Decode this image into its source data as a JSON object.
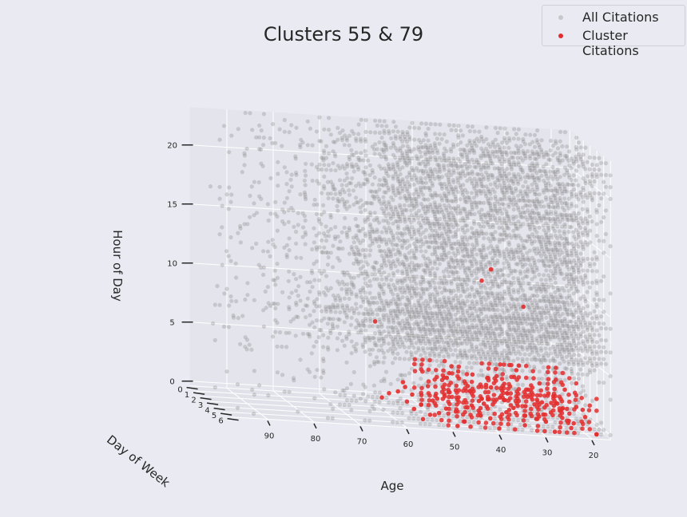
{
  "chart_data": {
    "type": "scatter",
    "projection": "3d",
    "title": "Clusters 55 & 79",
    "axes": {
      "x": {
        "label": "Age",
        "ticks": [
          90,
          80,
          70,
          60,
          50,
          40,
          30,
          20
        ],
        "range": [
          16,
          98
        ]
      },
      "y": {
        "label": "Day of Week",
        "ticks": [
          0,
          1,
          2,
          3,
          4,
          5,
          6
        ],
        "range": [
          0,
          6
        ]
      },
      "z": {
        "label": "Hour of Day",
        "ticks": [
          0,
          5,
          10,
          15,
          20
        ],
        "range": [
          0,
          23
        ]
      }
    },
    "grid": true,
    "legend_position": "top-right",
    "series": [
      {
        "name": "All Citations",
        "color": "#808080",
        "opacity": 0.3,
        "description": "dense grid of all citations across ages 16-95, all 7 days, hours 0-23; densest for ages 20-60",
        "age_range": [
          16,
          95
        ],
        "day_range": [
          0,
          6
        ],
        "hour_range": [
          0,
          23
        ]
      },
      {
        "name": "Cluster Citations",
        "color": "#e32e2e",
        "opacity": 0.9,
        "description": "concentrated in ages 19-58, early-morning hours 0-3, all days",
        "points": [
          [
            45,
            0,
            0
          ],
          [
            50,
            0,
            0
          ],
          [
            52,
            0,
            1
          ],
          [
            55,
            0,
            0
          ],
          [
            40,
            0,
            0
          ],
          [
            38,
            0,
            1
          ],
          [
            35,
            0,
            0
          ],
          [
            30,
            0,
            0
          ],
          [
            25,
            0,
            1
          ],
          [
            20,
            0,
            0
          ],
          [
            22,
            0,
            0
          ],
          [
            28,
            0,
            2
          ],
          [
            33,
            0,
            1
          ],
          [
            42,
            0,
            2
          ],
          [
            48,
            0,
            0
          ],
          [
            58,
            1,
            0
          ],
          [
            53,
            1,
            1
          ],
          [
            47,
            1,
            0
          ],
          [
            44,
            1,
            2
          ],
          [
            39,
            1,
            1
          ],
          [
            36,
            1,
            0
          ],
          [
            31,
            1,
            1
          ],
          [
            27,
            1,
            0
          ],
          [
            24,
            1,
            2
          ],
          [
            21,
            1,
            1
          ],
          [
            19,
            1,
            0
          ],
          [
            29,
            1,
            3
          ],
          [
            56,
            2,
            1
          ],
          [
            51,
            2,
            0
          ],
          [
            46,
            2,
            1
          ],
          [
            41,
            2,
            0
          ],
          [
            37,
            2,
            2
          ],
          [
            34,
            2,
            1
          ],
          [
            32,
            2,
            0
          ],
          [
            26,
            2,
            1
          ],
          [
            23,
            2,
            0
          ],
          [
            20,
            2,
            2
          ],
          [
            43,
            2,
            3
          ],
          [
            54,
            3,
            0
          ],
          [
            49,
            3,
            1
          ],
          [
            45,
            3,
            0
          ],
          [
            40,
            3,
            1
          ],
          [
            35,
            3,
            2
          ],
          [
            30,
            3,
            0
          ],
          [
            28,
            3,
            1
          ],
          [
            25,
            3,
            2
          ],
          [
            22,
            3,
            0
          ],
          [
            19,
            3,
            1
          ],
          [
            38,
            3,
            3
          ],
          [
            57,
            4,
            1
          ],
          [
            52,
            4,
            0
          ],
          [
            48,
            4,
            2
          ],
          [
            43,
            4,
            1
          ],
          [
            39,
            4,
            0
          ],
          [
            34,
            4,
            1
          ],
          [
            31,
            4,
            2
          ],
          [
            27,
            4,
            0
          ],
          [
            24,
            4,
            1
          ],
          [
            21,
            4,
            0
          ],
          [
            36,
            4,
            3
          ],
          [
            55,
            5,
            0
          ],
          [
            50,
            5,
            1
          ],
          [
            46,
            5,
            0
          ],
          [
            41,
            5,
            2
          ],
          [
            37,
            5,
            1
          ],
          [
            33,
            5,
            0
          ],
          [
            29,
            5,
            1
          ],
          [
            26,
            5,
            2
          ],
          [
            23,
            5,
            0
          ],
          [
            20,
            5,
            1
          ],
          [
            53,
            6,
            1
          ],
          [
            49,
            6,
            0
          ],
          [
            44,
            6,
            1
          ],
          [
            40,
            6,
            0
          ],
          [
            36,
            6,
            2
          ],
          [
            32,
            6,
            1
          ],
          [
            28,
            6,
            0
          ],
          [
            25,
            6,
            1
          ],
          [
            22,
            6,
            2
          ],
          [
            19,
            6,
            0
          ],
          [
            58,
            0,
            6
          ],
          [
            35,
            0,
            10
          ],
          [
            33,
            0,
            11
          ],
          [
            26,
            0,
            8
          ],
          [
            29,
            0,
            3
          ],
          [
            27,
            0,
            3
          ],
          [
            31,
            0,
            3
          ],
          [
            37,
            0,
            2
          ]
        ]
      }
    ]
  }
}
